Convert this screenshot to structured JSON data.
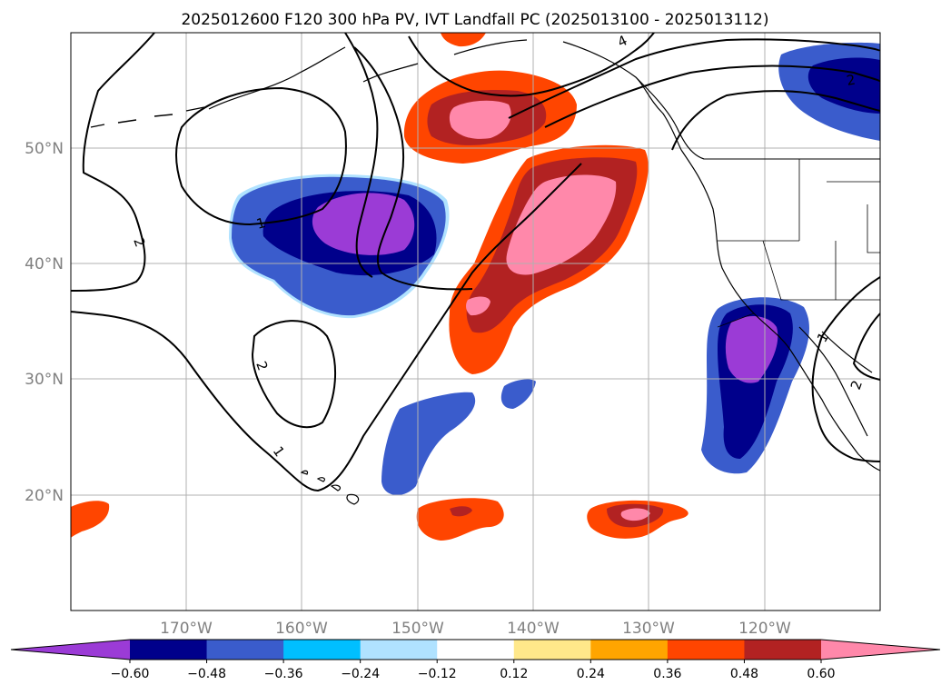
{
  "title": "2025012600 F120 300 hPa PV, IVT Landfall PC (2025013100 - 2025013112)",
  "map": {
    "lon_range": [
      -180,
      -110
    ],
    "lat_range": [
      10,
      60
    ],
    "lat_ticks": [
      {
        "value": 20,
        "label": "20°N"
      },
      {
        "value": 30,
        "label": "30°N"
      },
      {
        "value": 40,
        "label": "40°N"
      },
      {
        "value": 50,
        "label": "50°N"
      }
    ],
    "lon_ticks": [
      {
        "value": -170,
        "label": "170°W"
      },
      {
        "value": -160,
        "label": "160°W"
      },
      {
        "value": -150,
        "label": "150°W"
      },
      {
        "value": -140,
        "label": "140°W"
      },
      {
        "value": -130,
        "label": "130°W"
      },
      {
        "value": -120,
        "label": "120°W"
      }
    ],
    "gridlines": true,
    "contour_labels": [
      "2",
      "1",
      "2",
      "1",
      "4",
      "2",
      "1",
      "2"
    ]
  },
  "colorbar": {
    "orientation": "horizontal",
    "extend": "both",
    "boundaries": [
      -0.72,
      -0.6,
      -0.48,
      -0.36,
      -0.24,
      -0.12,
      0.12,
      0.24,
      0.36,
      0.48,
      0.6,
      0.72
    ],
    "colors": [
      "#9b3bd6",
      "#00008b",
      "#3a5ccc",
      "#00bfff",
      "#b0e2ff",
      "#ffffff",
      "#ffe88a",
      "#ffa500",
      "#ff4500",
      "#b22222",
      "#ff88aa",
      "#ff88aa"
    ],
    "tick_labels": [
      "−0.60",
      "−0.48",
      "−0.36",
      "−0.24",
      "−0.12",
      "0.12",
      "0.24",
      "0.36",
      "0.48",
      "0.60"
    ]
  }
}
